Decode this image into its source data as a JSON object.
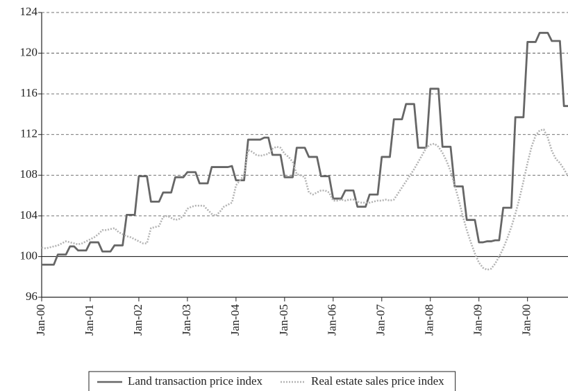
{
  "chart_data": {
    "type": "line",
    "categories": [
      "Jan-00",
      null,
      null,
      null,
      null,
      null,
      null,
      null,
      null,
      null,
      null,
      null,
      "Jan-01",
      null,
      null,
      null,
      null,
      null,
      null,
      null,
      null,
      null,
      null,
      null,
      "Jan-02",
      null,
      null,
      null,
      null,
      null,
      null,
      null,
      null,
      null,
      null,
      null,
      "Jan-03",
      null,
      null,
      null,
      null,
      null,
      null,
      null,
      null,
      null,
      null,
      null,
      "Jan-04",
      null,
      null,
      null,
      null,
      null,
      null,
      null,
      null,
      null,
      null,
      null,
      "Jan-05",
      null,
      null,
      null,
      null,
      null,
      null,
      null,
      null,
      null,
      null,
      null,
      "Jan-06",
      null,
      null,
      null,
      null,
      null,
      null,
      null,
      null,
      null,
      null,
      null,
      "Jan-07",
      null,
      null,
      null,
      null,
      null,
      null,
      null,
      null,
      null,
      null,
      null,
      "Jan-08",
      null,
      null,
      null,
      null,
      null,
      null,
      null,
      null,
      null,
      null,
      null,
      "Jan-09",
      null,
      null,
      null,
      null,
      null,
      null,
      null,
      null,
      null,
      null,
      null,
      "Jan-00",
      null,
      null,
      null,
      null,
      null,
      null,
      null,
      null,
      null,
      null
    ],
    "series": [
      {
        "name": "Land transaction price index",
        "color": "#666666",
        "style": "solid",
        "values": [
          99.2,
          99.2,
          99.2,
          99.2,
          100.2,
          100.2,
          100.2,
          101.0,
          101.0,
          100.6,
          100.6,
          100.6,
          101.4,
          101.4,
          101.4,
          100.5,
          100.5,
          100.5,
          101.1,
          101.1,
          101.1,
          104.1,
          104.1,
          104.1,
          107.9,
          107.9,
          107.9,
          105.4,
          105.4,
          105.4,
          106.3,
          106.3,
          106.3,
          107.8,
          107.8,
          107.8,
          108.3,
          108.3,
          108.3,
          107.2,
          107.2,
          107.2,
          108.8,
          108.8,
          108.8,
          108.8,
          108.8,
          108.9,
          107.5,
          107.5,
          107.5,
          111.5,
          111.5,
          111.5,
          111.5,
          111.7,
          111.7,
          110.0,
          110.0,
          110.0,
          107.8,
          107.8,
          107.8,
          110.7,
          110.7,
          110.7,
          109.8,
          109.8,
          109.8,
          107.9,
          107.9,
          107.9,
          105.7,
          105.7,
          105.7,
          106.5,
          106.5,
          106.5,
          104.9,
          104.9,
          104.9,
          106.1,
          106.1,
          106.1,
          109.8,
          109.8,
          109.8,
          113.5,
          113.5,
          113.5,
          115.0,
          115.0,
          115.0,
          110.7,
          110.7,
          110.7,
          116.5,
          116.5,
          116.5,
          110.8,
          110.8,
          110.8,
          106.9,
          106.9,
          106.9,
          103.6,
          103.6,
          103.6,
          101.4,
          101.4,
          101.5,
          101.5,
          101.6,
          101.6,
          104.8,
          104.8,
          104.8,
          113.7,
          113.7,
          113.7,
          121.1,
          121.1,
          121.1,
          122.0,
          122.0,
          122.0,
          121.2,
          121.2,
          121.2,
          114.8,
          114.8
        ]
      },
      {
        "name": "Real estate sales price index",
        "color": "#b3b3b3",
        "style": "dotted",
        "values": [
          100.9,
          100.8,
          100.9,
          101.0,
          101.1,
          101.3,
          101.5,
          101.4,
          101.3,
          101.2,
          101.3,
          101.5,
          101.7,
          101.9,
          102.2,
          102.6,
          102.6,
          102.7,
          102.8,
          102.4,
          102.2,
          102.0,
          101.9,
          101.7,
          101.5,
          101.3,
          101.3,
          102.8,
          102.9,
          103.0,
          103.9,
          104.0,
          103.8,
          103.6,
          103.7,
          104.0,
          104.7,
          104.9,
          105.0,
          105.0,
          105.0,
          104.6,
          104.2,
          104.0,
          104.4,
          104.9,
          105.1,
          105.3,
          107.0,
          107.5,
          108.0,
          110.5,
          110.3,
          110.0,
          109.9,
          110.0,
          110.1,
          110.6,
          110.8,
          110.7,
          110.1,
          109.8,
          109.3,
          108.1,
          108.0,
          107.8,
          106.3,
          106.1,
          106.3,
          106.5,
          106.5,
          106.3,
          105.5,
          105.5,
          105.6,
          105.5,
          105.6,
          105.6,
          105.4,
          105.3,
          105.3,
          105.3,
          105.4,
          105.5,
          105.5,
          105.6,
          105.5,
          105.6,
          106.2,
          106.8,
          107.4,
          108.0,
          108.6,
          109.3,
          110.0,
          110.7,
          111.0,
          111.1,
          110.8,
          110.2,
          109.4,
          108.4,
          107.0,
          105.6,
          104.0,
          102.6,
          101.4,
          100.3,
          99.4,
          98.9,
          98.7,
          98.8,
          99.3,
          100.0,
          100.8,
          101.8,
          102.9,
          104.2,
          105.7,
          107.4,
          109.2,
          110.8,
          111.9,
          112.4,
          112.5,
          111.7,
          110.4,
          109.6,
          109.2,
          108.6,
          107.9
        ]
      }
    ],
    "ylim": [
      96,
      124
    ],
    "yticks": [
      96,
      100,
      104,
      108,
      112,
      116,
      120,
      124
    ],
    "grid": true,
    "grid_style": "dashed",
    "reference_line": 100,
    "legend": "bottom"
  }
}
